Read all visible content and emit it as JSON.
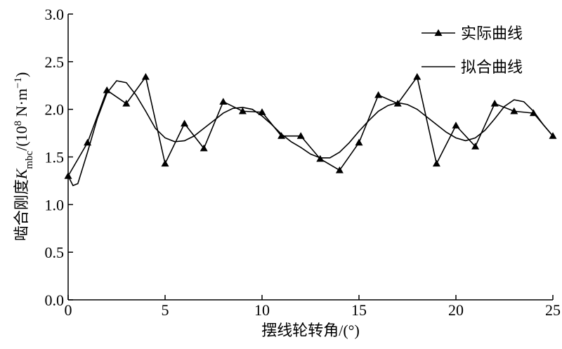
{
  "chart_data": {
    "type": "line",
    "xlabel": "摆线轮转角/(°)",
    "ylabel_parts": [
      {
        "text": "啮合刚度",
        "style": "normal"
      },
      {
        "text": "K",
        "style": "italic"
      },
      {
        "text": "mbc",
        "style": "sub"
      },
      {
        "text": "/(10",
        "style": "normal"
      },
      {
        "text": "8",
        "style": "sup"
      },
      {
        "text": " N·m",
        "style": "normal"
      },
      {
        "text": "−1",
        "style": "sup"
      },
      {
        "text": ")",
        "style": "normal"
      }
    ],
    "xlim": [
      0,
      25
    ],
    "xticks": [
      0,
      5,
      10,
      15,
      20,
      25
    ],
    "ylim": [
      0,
      3
    ],
    "yticks": [
      {
        "value": 0,
        "label": "0.0"
      },
      0.5,
      {
        "value": 1,
        "label": "1.0"
      },
      1.5,
      {
        "value": 2,
        "label": "2.0"
      },
      2.5,
      {
        "value": 3,
        "label": "3.0"
      }
    ],
    "legend": "upper-right",
    "series": [
      {
        "name": "实际曲线",
        "color": "#000000",
        "marker": "triangle",
        "x": [
          0,
          1,
          2,
          3,
          4,
          5,
          6,
          7,
          8,
          9,
          10,
          11,
          12,
          13,
          14,
          15,
          16,
          17,
          18,
          19,
          20,
          21,
          22,
          23,
          24,
          25
        ],
        "values": [
          1.3,
          1.65,
          2.2,
          2.06,
          2.34,
          1.43,
          1.85,
          1.59,
          2.08,
          1.98,
          1.97,
          1.72,
          1.72,
          1.48,
          1.36,
          1.65,
          2.15,
          2.06,
          2.34,
          1.43,
          1.83,
          1.61,
          2.06,
          1.98,
          1.96,
          1.72
        ]
      },
      {
        "name": "拟合曲线",
        "color": "#000000",
        "marker": "none",
        "x": [
          0,
          0.25,
          0.5,
          1,
          1.5,
          2,
          2.5,
          3,
          3.5,
          4,
          4.5,
          5,
          5.5,
          6,
          6.5,
          7,
          7.5,
          8,
          8.5,
          9,
          9.5,
          10,
          10.5,
          11,
          11.5,
          12,
          12.5,
          13,
          13.5,
          14,
          14.5,
          15,
          15.5,
          16,
          16.5,
          17,
          17.5,
          18,
          18.5,
          19,
          19.5,
          20,
          20.5,
          21,
          21.5,
          22,
          22.5,
          23,
          23.5,
          24,
          24.5,
          25
        ],
        "values": [
          1.3,
          1.2,
          1.22,
          1.55,
          1.9,
          2.17,
          2.3,
          2.28,
          2.15,
          1.98,
          1.8,
          1.7,
          1.66,
          1.67,
          1.72,
          1.8,
          1.88,
          1.96,
          2.01,
          2.02,
          2.0,
          1.93,
          1.84,
          1.74,
          1.66,
          1.6,
          1.53,
          1.49,
          1.49,
          1.55,
          1.65,
          1.77,
          1.88,
          1.98,
          2.04,
          2.07,
          2.05,
          2.0,
          1.92,
          1.84,
          1.76,
          1.7,
          1.67,
          1.7,
          1.78,
          1.9,
          2.03,
          2.1,
          2.08,
          1.98,
          1.84,
          1.72
        ]
      }
    ]
  }
}
